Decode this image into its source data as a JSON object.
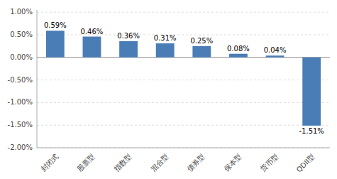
{
  "chart_data": {
    "type": "bar",
    "categories": [
      "封闭式",
      "股票型",
      "指数型",
      "混合型",
      "债券型",
      "保本型",
      "货币型",
      "QDII型"
    ],
    "values": [
      0.59,
      0.46,
      0.36,
      0.31,
      0.25,
      0.08,
      0.04,
      -1.51
    ],
    "value_labels": [
      "0.59%",
      "0.46%",
      "0.36%",
      "0.31%",
      "0.25%",
      "0.08%",
      "0.04%",
      "-1.51%"
    ],
    "color": "#4a7db5",
    "ylim": [
      -2.0,
      1.05
    ],
    "yticks": [
      {
        "value": -2.0,
        "label": "-2.00%"
      },
      {
        "value": -1.5,
        "label": "-1.50%"
      },
      {
        "value": -1.0,
        "label": "-1.00%"
      },
      {
        "value": -0.5,
        "label": "-0.50%"
      },
      {
        "value": 0.0,
        "label": "0.00%"
      },
      {
        "value": 0.5,
        "label": "0.50%"
      },
      {
        "value": 1.0,
        "label": "1.00%"
      }
    ],
    "grid": true,
    "data_labels": true
  }
}
